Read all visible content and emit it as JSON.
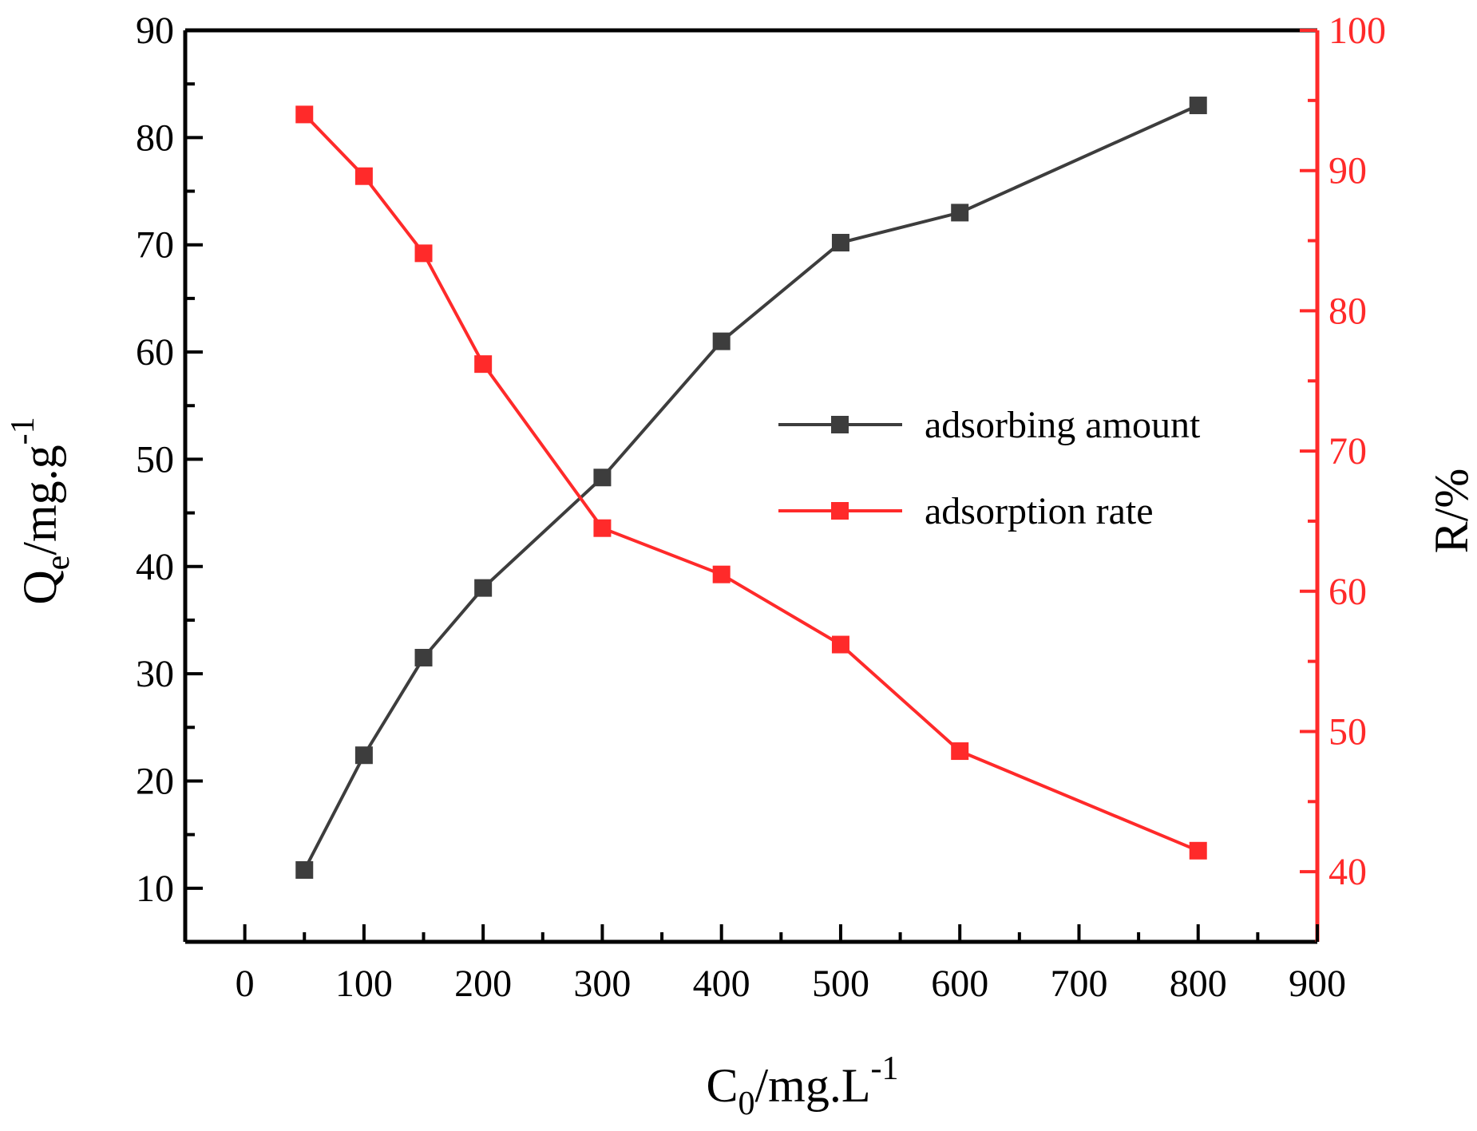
{
  "chart_data": {
    "type": "line",
    "colors": {
      "series_1": "#3d3d3d",
      "series_2": "#ff2a2a",
      "axis": "#000000"
    },
    "x": [
      50,
      100,
      150,
      200,
      300,
      400,
      500,
      600,
      800
    ],
    "xlim": [
      -50,
      900
    ],
    "xticks": [
      0,
      100,
      200,
      300,
      400,
      500,
      600,
      700,
      800,
      900
    ],
    "xtick_labels": [
      "0",
      "100",
      "200",
      "300",
      "400",
      "500",
      "600",
      "700",
      "800",
      "900"
    ],
    "ylim_left": [
      5,
      90
    ],
    "yticks_left": [
      10,
      20,
      30,
      40,
      50,
      60,
      70,
      80,
      90
    ],
    "ytick_labels_left": [
      "10",
      "20",
      "30",
      "40",
      "50",
      "60",
      "70",
      "80",
      "90"
    ],
    "ylim_right": [
      35,
      100
    ],
    "yticks_right": [
      40,
      50,
      60,
      70,
      80,
      90,
      100
    ],
    "ytick_labels_right": [
      "40",
      "50",
      "60",
      "70",
      "80",
      "90",
      "100"
    ],
    "xlabel": {
      "main": "C",
      "sub": "0",
      "rest": "/mg.L",
      "sup": "-1"
    },
    "ylabel_left": {
      "main": "Q",
      "sub": "e",
      "rest": "/mg.g",
      "sup": "-1"
    },
    "ylabel_right": "R/%",
    "legend_position": "center-right",
    "series": [
      {
        "name": "adsorbing amount",
        "axis": "left",
        "values": [
          11.7,
          22.4,
          31.5,
          38.0,
          48.3,
          61.0,
          70.2,
          73.0,
          83.0
        ]
      },
      {
        "name": "adsorption rate",
        "axis": "right",
        "values": [
          94.0,
          89.6,
          84.1,
          76.2,
          64.5,
          61.2,
          56.2,
          48.6,
          41.5
        ]
      }
    ]
  }
}
